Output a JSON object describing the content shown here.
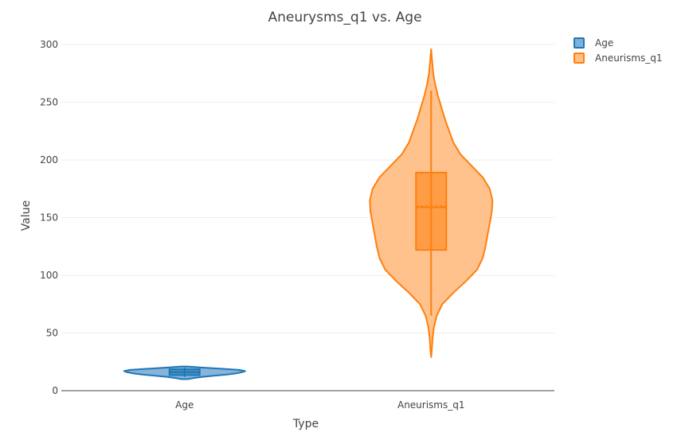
{
  "chart_data": {
    "type": "violin",
    "title": "Aneurysms_q1 vs. Age",
    "xlabel": "Type",
    "ylabel": "Value",
    "ylim": [
      0,
      305
    ],
    "yticks": [
      0,
      50,
      100,
      150,
      200,
      250,
      300
    ],
    "categories": [
      "Age",
      "Aneurisms_q1"
    ],
    "grid": true,
    "legend_position": "top-right",
    "series": [
      {
        "name": "Age",
        "category": "Age",
        "color": "#1f77b4",
        "fill": "#7fb0d9",
        "range": [
          10,
          21
        ],
        "box": {
          "q1": 13.5,
          "median": 16,
          "q3": 18.5,
          "mean": 16,
          "whisker_low": 12,
          "whisker_high": 20
        },
        "density": [
          [
            10,
            0.05
          ],
          [
            11,
            0.15
          ],
          [
            12,
            0.3
          ],
          [
            13,
            0.5
          ],
          [
            14,
            0.7
          ],
          [
            15,
            0.85
          ],
          [
            16,
            0.95
          ],
          [
            17,
            1.0
          ],
          [
            18,
            0.9
          ],
          [
            19,
            0.6
          ],
          [
            20,
            0.3
          ],
          [
            21,
            0.05
          ]
        ]
      },
      {
        "name": "Aneurisms_q1",
        "category": "Aneurisms_q1",
        "color": "#ff7f0e",
        "fill": "#ffbf86",
        "range": [
          29,
          296
        ],
        "box": {
          "q1": 122,
          "median": 159,
          "q3": 189,
          "mean": 160,
          "whisker_low": 65,
          "whisker_high": 260
        },
        "density": [
          [
            29,
            0.0
          ],
          [
            35,
            0.01
          ],
          [
            45,
            0.02
          ],
          [
            55,
            0.04
          ],
          [
            65,
            0.08
          ],
          [
            75,
            0.16
          ],
          [
            85,
            0.32
          ],
          [
            95,
            0.5
          ],
          [
            105,
            0.66
          ],
          [
            115,
            0.74
          ],
          [
            125,
            0.78
          ],
          [
            135,
            0.81
          ],
          [
            145,
            0.84
          ],
          [
            155,
            0.87
          ],
          [
            165,
            0.88
          ],
          [
            175,
            0.84
          ],
          [
            185,
            0.74
          ],
          [
            195,
            0.58
          ],
          [
            205,
            0.42
          ],
          [
            215,
            0.32
          ],
          [
            225,
            0.26
          ],
          [
            235,
            0.2
          ],
          [
            245,
            0.15
          ],
          [
            255,
            0.1
          ],
          [
            265,
            0.06
          ],
          [
            275,
            0.03
          ],
          [
            285,
            0.015
          ],
          [
            296,
            0.0
          ]
        ]
      }
    ]
  }
}
